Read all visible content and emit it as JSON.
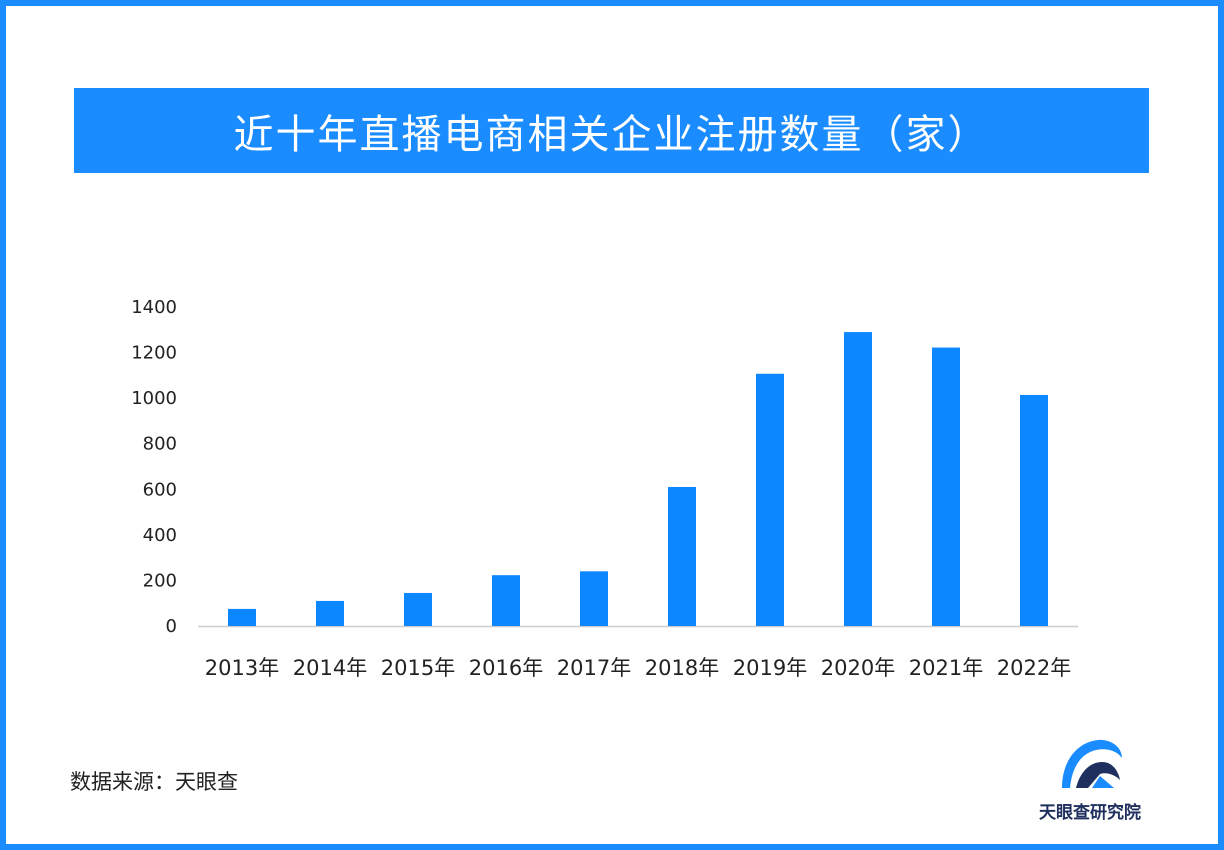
{
  "title": "近十年直播电商相关企业注册数量（家）",
  "source_text": "数据来源：天眼查",
  "logo": {
    "name": "天眼查研究院",
    "icon": "tianyancha-logo-icon",
    "colors": {
      "primary": "#1a8cff",
      "dark": "#1f2f5e"
    }
  },
  "colors": {
    "frame": "#1a8cff",
    "banner": "#1a8cff",
    "bar": "#0d87ff",
    "axis": "#cccccc",
    "text": "#222222"
  },
  "chart_data": {
    "type": "bar",
    "title": "近十年直播电商相关企业注册数量（家）",
    "xlabel": "",
    "ylabel": "",
    "categories": [
      "2013年",
      "2014年",
      "2015年",
      "2016年",
      "2017年",
      "2018年",
      "2019年",
      "2020年",
      "2021年",
      "2022年"
    ],
    "values": [
      75,
      110,
      145,
      223,
      240,
      610,
      1107,
      1290,
      1222,
      1014
    ],
    "ylim": [
      0,
      1400
    ],
    "yticks": [
      0,
      200,
      400,
      600,
      800,
      1000,
      1200,
      1400
    ],
    "ytick_labels": [
      "0",
      "200",
      "400",
      "600",
      "800",
      "1000",
      "1200",
      "1400"
    ],
    "grid": false,
    "legend": "none"
  }
}
